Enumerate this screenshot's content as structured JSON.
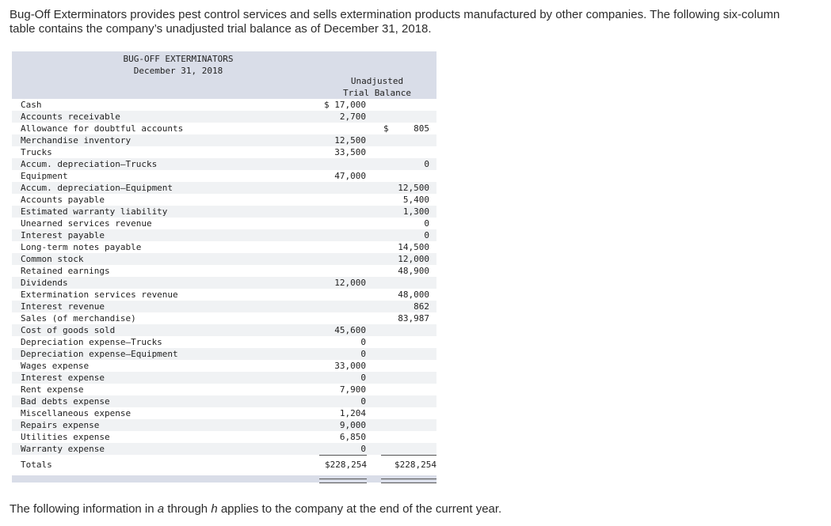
{
  "intro_text": "Bug-Off Exterminators provides pest control services and sells extermination products manufactured by other companies. The following six-column table contains the company’s unadjusted trial balance as of December 31, 2018.",
  "table": {
    "company": "BUG-OFF EXTERMINATORS",
    "date": "December 31, 2018",
    "column_header_line1": "Unadjusted",
    "column_header_line2": "Trial Balance",
    "rows": [
      {
        "account": "Cash",
        "debit": "$ 17,000",
        "credit": ""
      },
      {
        "account": "Accounts receivable",
        "debit": "2,700",
        "credit": ""
      },
      {
        "account": "Allowance for doubtful accounts",
        "debit": "",
        "credit": "805",
        "credit_currency": "$"
      },
      {
        "account": "Merchandise inventory",
        "debit": "12,500",
        "credit": ""
      },
      {
        "account": "Trucks",
        "debit": "33,500",
        "credit": ""
      },
      {
        "account": "Accum. depreciation—Trucks",
        "debit": "",
        "credit": "0"
      },
      {
        "account": "Equipment",
        "debit": "47,000",
        "credit": ""
      },
      {
        "account": "Accum. depreciation—Equipment",
        "debit": "",
        "credit": "12,500"
      },
      {
        "account": "Accounts payable",
        "debit": "",
        "credit": "5,400"
      },
      {
        "account": "Estimated warranty liability",
        "debit": "",
        "credit": "1,300"
      },
      {
        "account": "Unearned services revenue",
        "debit": "",
        "credit": "0"
      },
      {
        "account": "Interest payable",
        "debit": "",
        "credit": "0"
      },
      {
        "account": "Long-term notes payable",
        "debit": "",
        "credit": "14,500"
      },
      {
        "account": "Common stock",
        "debit": "",
        "credit": "12,000"
      },
      {
        "account": "Retained earnings",
        "debit": "",
        "credit": "48,900"
      },
      {
        "account": "Dividends",
        "debit": "12,000",
        "credit": ""
      },
      {
        "account": "Extermination services revenue",
        "debit": "",
        "credit": "48,000"
      },
      {
        "account": "Interest revenue",
        "debit": "",
        "credit": "862"
      },
      {
        "account": "Sales (of merchandise)",
        "debit": "",
        "credit": "83,987"
      },
      {
        "account": "Cost of goods sold",
        "debit": "45,600",
        "credit": ""
      },
      {
        "account": "Depreciation expense—Trucks",
        "debit": "0",
        "credit": ""
      },
      {
        "account": "Depreciation expense—Equipment",
        "debit": "0",
        "credit": ""
      },
      {
        "account": "Wages expense",
        "debit": "33,000",
        "credit": ""
      },
      {
        "account": "Interest expense",
        "debit": "0",
        "credit": ""
      },
      {
        "account": "Rent expense",
        "debit": "7,900",
        "credit": ""
      },
      {
        "account": "Bad debts expense",
        "debit": "0",
        "credit": ""
      },
      {
        "account": "Miscellaneous expense",
        "debit": "1,204",
        "credit": ""
      },
      {
        "account": "Repairs expense",
        "debit": "9,000",
        "credit": ""
      },
      {
        "account": "Utilities expense",
        "debit": "6,850",
        "credit": ""
      },
      {
        "account": "Warranty expense",
        "debit": "0",
        "credit": ""
      }
    ],
    "totals_label": "Totals",
    "totals_debit": "$228,254",
    "totals_credit": "$228,254"
  },
  "footer": {
    "part1": "The following information in ",
    "a": "a",
    "part2": " through ",
    "h": "h",
    "part3": " applies to the company at the end of the current year."
  }
}
